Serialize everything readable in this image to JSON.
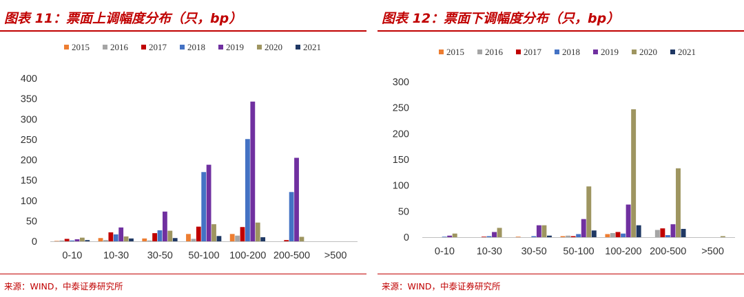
{
  "chart_data": [
    {
      "type": "bar",
      "title": "图表 11：票面上调幅度分布（只，bp）",
      "xlabel": "",
      "ylabel": "",
      "ylim": [
        0,
        400
      ],
      "yticks": [
        0,
        50,
        100,
        150,
        200,
        250,
        300,
        350,
        400
      ],
      "categories": [
        "0-10",
        "10-30",
        "30-50",
        "50-100",
        "100-200",
        "200-500",
        ">500"
      ],
      "legend_position": "top",
      "grid": false,
      "series": [
        {
          "name": "2015",
          "color": "#ED7D31",
          "values": [
            1,
            8,
            7,
            18,
            18,
            0,
            0
          ]
        },
        {
          "name": "2016",
          "color": "#A5A5A5",
          "values": [
            2,
            3,
            2,
            6,
            14,
            0,
            0
          ]
        },
        {
          "name": "2017",
          "color": "#C00000",
          "values": [
            6,
            22,
            20,
            36,
            35,
            3,
            0
          ]
        },
        {
          "name": "2018",
          "color": "#4472C4",
          "values": [
            2,
            17,
            27,
            170,
            251,
            121,
            0
          ]
        },
        {
          "name": "2019",
          "color": "#7030A0",
          "values": [
            5,
            34,
            73,
            188,
            343,
            205,
            0
          ]
        },
        {
          "name": "2020",
          "color": "#9E9560",
          "values": [
            9,
            12,
            26,
            42,
            46,
            11,
            0
          ]
        },
        {
          "name": "2021",
          "color": "#1F3864",
          "values": [
            3,
            7,
            8,
            13,
            10,
            0,
            0
          ]
        }
      ]
    },
    {
      "type": "bar",
      "title": "图表 12：票面下调幅度分布（只，bp）",
      "xlabel": "",
      "ylabel": "",
      "ylim": [
        0,
        300
      ],
      "yticks": [
        0,
        50,
        100,
        150,
        200,
        250,
        300
      ],
      "categories": [
        "0-10",
        "10-30",
        "30-50",
        "50-100",
        "100-200",
        "200-500",
        ">500"
      ],
      "legend_position": "top",
      "grid": false,
      "series": [
        {
          "name": "2015",
          "color": "#ED7D31",
          "values": [
            0,
            0,
            1,
            2,
            6,
            0,
            0
          ]
        },
        {
          "name": "2016",
          "color": "#A5A5A5",
          "values": [
            0,
            0,
            0,
            3,
            8,
            14,
            0
          ]
        },
        {
          "name": "2017",
          "color": "#C00000",
          "values": [
            0,
            1,
            0,
            2,
            10,
            17,
            0
          ]
        },
        {
          "name": "2018",
          "color": "#4472C4",
          "values": [
            1,
            2,
            2,
            6,
            7,
            4,
            0
          ]
        },
        {
          "name": "2019",
          "color": "#7030A0",
          "values": [
            3,
            10,
            23,
            35,
            63,
            25,
            0
          ]
        },
        {
          "name": "2020",
          "color": "#9E9560",
          "values": [
            7,
            18,
            23,
            98,
            247,
            133,
            2
          ]
        },
        {
          "name": "2021",
          "color": "#1F3864",
          "values": [
            0,
            0,
            3,
            13,
            23,
            16,
            0
          ]
        }
      ]
    }
  ],
  "source": "来源：WIND，中泰证券研究所"
}
